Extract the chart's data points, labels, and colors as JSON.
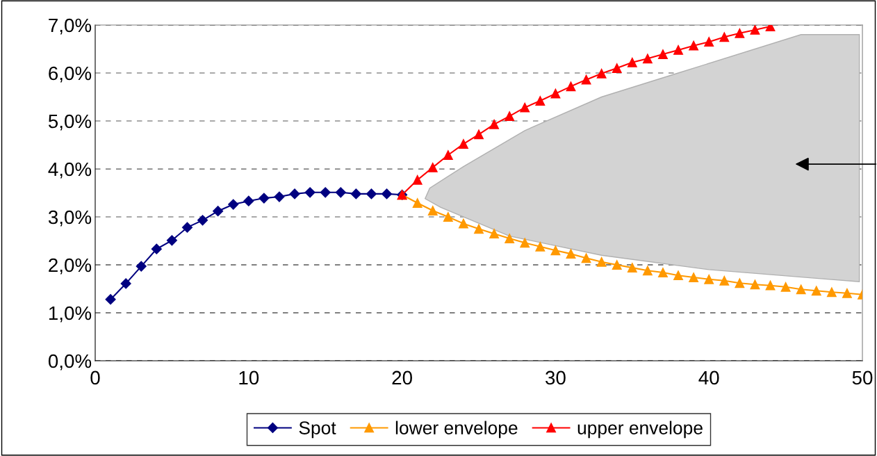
{
  "chart_data": {
    "type": "line",
    "series": [
      {
        "name": "Spot",
        "color": "#000080",
        "marker": "diamond",
        "x": [
          1,
          2,
          3,
          4,
          5,
          6,
          7,
          8,
          9,
          10,
          11,
          12,
          13,
          14,
          15,
          16,
          17,
          18,
          19,
          20
        ],
        "values": [
          1.28,
          1.61,
          1.97,
          2.33,
          2.51,
          2.78,
          2.93,
          3.12,
          3.26,
          3.33,
          3.39,
          3.42,
          3.48,
          3.51,
          3.51,
          3.51,
          3.48,
          3.48,
          3.48,
          3.46
        ]
      },
      {
        "name": "lower envelope",
        "color": "#ff9900",
        "marker": "triangle",
        "x": [
          20,
          21,
          22,
          23,
          24,
          25,
          26,
          27,
          28,
          29,
          30,
          31,
          32,
          33,
          34,
          35,
          36,
          37,
          38,
          39,
          40,
          41,
          42,
          43,
          44,
          45,
          46,
          47,
          48,
          49,
          50
        ],
        "values": [
          3.46,
          3.29,
          3.13,
          3.0,
          2.86,
          2.75,
          2.65,
          2.55,
          2.46,
          2.38,
          2.3,
          2.23,
          2.14,
          2.06,
          2.0,
          1.94,
          1.88,
          1.84,
          1.78,
          1.74,
          1.7,
          1.67,
          1.62,
          1.59,
          1.57,
          1.54,
          1.49,
          1.46,
          1.43,
          1.41,
          1.38
        ]
      },
      {
        "name": "upper envelope",
        "color": "#ff0000",
        "marker": "triangle",
        "x": [
          20,
          21,
          22,
          23,
          24,
          25,
          26,
          27,
          28,
          29,
          30,
          31,
          32,
          33,
          34,
          35,
          36,
          37,
          38,
          39,
          40,
          41,
          42,
          43,
          44
        ],
        "values": [
          3.46,
          3.77,
          4.03,
          4.29,
          4.52,
          4.72,
          4.93,
          5.1,
          5.28,
          5.42,
          5.57,
          5.72,
          5.86,
          5.99,
          6.1,
          6.22,
          6.3,
          6.39,
          6.48,
          6.57,
          6.65,
          6.75,
          6.83,
          6.9,
          6.97
        ]
      }
    ],
    "xlim": [
      0,
      50
    ],
    "xticks": [
      0,
      10,
      20,
      30,
      40,
      50
    ],
    "ylim": [
      0,
      7
    ],
    "yticks": [
      {
        "value": 0,
        "label": "0,0%"
      },
      {
        "value": 1,
        "label": "1,0%"
      },
      {
        "value": 2,
        "label": "2,0%"
      },
      {
        "value": 3,
        "label": "3,0%"
      },
      {
        "value": 4,
        "label": "4,0%"
      },
      {
        "value": 5,
        "label": "5,0%"
      },
      {
        "value": 6,
        "label": "6,0%"
      },
      {
        "value": 7,
        "label": "7,0%"
      }
    ],
    "grid": "y",
    "legend": "bottom"
  }
}
